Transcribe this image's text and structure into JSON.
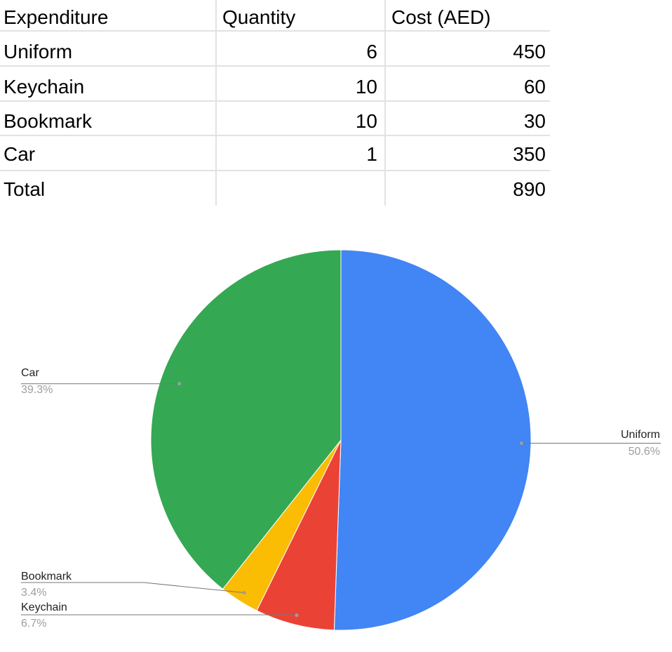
{
  "table": {
    "headers": [
      "Expenditure",
      "Quantity",
      "Cost (AED)"
    ],
    "rows": [
      [
        "Uniform",
        "6",
        "450"
      ],
      [
        "Keychain",
        "10",
        "60"
      ],
      [
        "Bookmark",
        "10",
        "30"
      ],
      [
        "Car",
        "1",
        "350"
      ],
      [
        "Total",
        "",
        "890"
      ]
    ]
  },
  "chart_data": {
    "type": "pie",
    "title": "",
    "slices": [
      {
        "label": "Uniform",
        "value": 450,
        "percent_label": "50.6%",
        "color": "#4285f4"
      },
      {
        "label": "Keychain",
        "value": 60,
        "percent_label": "6.7%",
        "color": "#ea4335"
      },
      {
        "label": "Bookmark",
        "value": 30,
        "percent_label": "3.4%",
        "color": "#fbbc04"
      },
      {
        "label": "Car",
        "value": 350,
        "percent_label": "39.3%",
        "color": "#34a853"
      }
    ],
    "start_angle": "top (12 o'clock)",
    "direction": "clockwise",
    "legend": "none (labels with leader lines)"
  }
}
